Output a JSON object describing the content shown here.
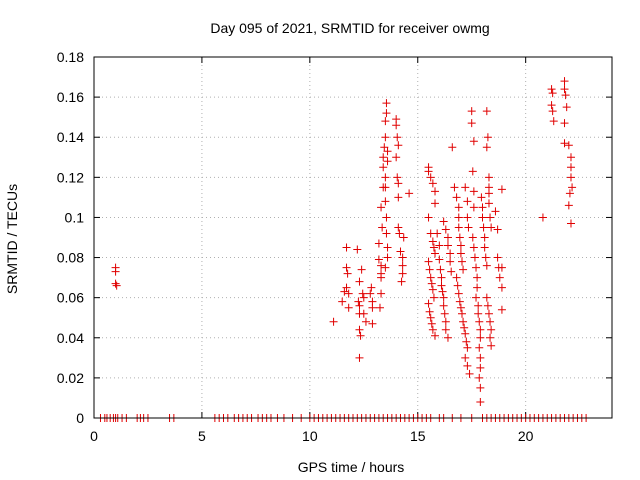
{
  "chart_data": {
    "type": "scatter",
    "title": "Day 095 of 2021, SRMTID for receiver owmg",
    "xlabel": "GPS time / hours",
    "ylabel": "SRMTID / TECUs",
    "xlim": [
      0,
      24
    ],
    "ylim": [
      0,
      0.18
    ],
    "xticks": [
      0,
      5,
      10,
      15,
      20
    ],
    "xtick_labels": [
      "0",
      "5",
      "10",
      "15",
      "20"
    ],
    "yticks": [
      0,
      0.02,
      0.04,
      0.06,
      0.08,
      0.1,
      0.12,
      0.14,
      0.16,
      0.18
    ],
    "ytick_labels": [
      "0",
      "0.02",
      "0.04",
      "0.06",
      "0.08",
      "0.1",
      "0.12",
      "0.14",
      "0.16",
      "0.18"
    ],
    "grid": true,
    "marker": "+",
    "color": "#e00000",
    "series": [
      {
        "name": "SRMTID",
        "points": [
          [
            1.0,
            0.075
          ],
          [
            1.0,
            0.073
          ],
          [
            1.0,
            0.067
          ],
          [
            1.05,
            0.066
          ],
          [
            11.1,
            0.048
          ],
          [
            11.5,
            0.058
          ],
          [
            11.6,
            0.063
          ],
          [
            11.7,
            0.085
          ],
          [
            11.7,
            0.075
          ],
          [
            11.75,
            0.072
          ],
          [
            11.7,
            0.065
          ],
          [
            11.8,
            0.062
          ],
          [
            11.8,
            0.055
          ],
          [
            12.2,
            0.084
          ],
          [
            12.3,
            0.068
          ],
          [
            12.25,
            0.058
          ],
          [
            12.3,
            0.056
          ],
          [
            12.3,
            0.052
          ],
          [
            12.3,
            0.044
          ],
          [
            12.35,
            0.041
          ],
          [
            12.3,
            0.03
          ],
          [
            12.4,
            0.074
          ],
          [
            12.45,
            0.062
          ],
          [
            12.5,
            0.06
          ],
          [
            12.5,
            0.052
          ],
          [
            12.6,
            0.048
          ],
          [
            12.8,
            0.062
          ],
          [
            12.9,
            0.058
          ],
          [
            12.9,
            0.055
          ],
          [
            12.9,
            0.047
          ],
          [
            12.85,
            0.065
          ],
          [
            13.2,
            0.087
          ],
          [
            13.2,
            0.079
          ],
          [
            13.3,
            0.076
          ],
          [
            13.3,
            0.072
          ],
          [
            13.3,
            0.07
          ],
          [
            13.3,
            0.062
          ],
          [
            13.25,
            0.055
          ],
          [
            13.35,
            0.095
          ],
          [
            13.3,
            0.105
          ],
          [
            13.4,
            0.115
          ],
          [
            13.4,
            0.125
          ],
          [
            13.4,
            0.13
          ],
          [
            13.45,
            0.135
          ],
          [
            13.5,
            0.14
          ],
          [
            13.5,
            0.148
          ],
          [
            13.55,
            0.152
          ],
          [
            13.55,
            0.157
          ],
          [
            13.6,
            0.133
          ],
          [
            13.6,
            0.128
          ],
          [
            13.5,
            0.12
          ],
          [
            13.5,
            0.115
          ],
          [
            13.5,
            0.108
          ],
          [
            13.55,
            0.1
          ],
          [
            13.55,
            0.092
          ],
          [
            13.6,
            0.085
          ],
          [
            13.6,
            0.08
          ],
          [
            13.5,
            0.075
          ],
          [
            14.0,
            0.149
          ],
          [
            14.0,
            0.146
          ],
          [
            14.05,
            0.14
          ],
          [
            14.1,
            0.136
          ],
          [
            14.0,
            0.13
          ],
          [
            14.05,
            0.12
          ],
          [
            14.1,
            0.117
          ],
          [
            14.1,
            0.11
          ],
          [
            14.1,
            0.095
          ],
          [
            14.15,
            0.092
          ],
          [
            14.2,
            0.083
          ],
          [
            14.3,
            0.08
          ],
          [
            14.3,
            0.076
          ],
          [
            14.3,
            0.072
          ],
          [
            14.25,
            0.068
          ],
          [
            14.35,
            0.09
          ],
          [
            14.6,
            0.112
          ],
          [
            15.5,
            0.125
          ],
          [
            15.5,
            0.123
          ],
          [
            15.6,
            0.12
          ],
          [
            15.7,
            0.117
          ],
          [
            15.8,
            0.113
          ],
          [
            15.8,
            0.107
          ],
          [
            15.5,
            0.1
          ],
          [
            15.6,
            0.092
          ],
          [
            15.7,
            0.088
          ],
          [
            15.75,
            0.085
          ],
          [
            15.8,
            0.082
          ],
          [
            15.5,
            0.078
          ],
          [
            15.55,
            0.074
          ],
          [
            15.6,
            0.07
          ],
          [
            15.65,
            0.067
          ],
          [
            15.7,
            0.064
          ],
          [
            15.75,
            0.06
          ],
          [
            15.5,
            0.057
          ],
          [
            15.55,
            0.053
          ],
          [
            15.6,
            0.05
          ],
          [
            15.65,
            0.047
          ],
          [
            15.7,
            0.044
          ],
          [
            15.8,
            0.041
          ],
          [
            15.9,
            0.092
          ],
          [
            16.0,
            0.086
          ],
          [
            16.0,
            0.079
          ],
          [
            16.05,
            0.074
          ],
          [
            16.1,
            0.07
          ],
          [
            16.1,
            0.066
          ],
          [
            16.15,
            0.063
          ],
          [
            16.2,
            0.06
          ],
          [
            16.2,
            0.056
          ],
          [
            16.25,
            0.052
          ],
          [
            16.3,
            0.048
          ],
          [
            16.3,
            0.044
          ],
          [
            16.4,
            0.04
          ],
          [
            16.2,
            0.098
          ],
          [
            16.3,
            0.094
          ],
          [
            16.4,
            0.09
          ],
          [
            16.4,
            0.086
          ],
          [
            16.5,
            0.082
          ],
          [
            16.5,
            0.078
          ],
          [
            16.55,
            0.073
          ],
          [
            16.6,
            0.135
          ],
          [
            16.7,
            0.115
          ],
          [
            16.8,
            0.11
          ],
          [
            16.9,
            0.105
          ],
          [
            16.9,
            0.1
          ],
          [
            16.9,
            0.095
          ],
          [
            16.95,
            0.09
          ],
          [
            17.0,
            0.086
          ],
          [
            17.0,
            0.082
          ],
          [
            17.05,
            0.078
          ],
          [
            17.1,
            0.074
          ],
          [
            16.8,
            0.07
          ],
          [
            16.85,
            0.066
          ],
          [
            16.9,
            0.062
          ],
          [
            16.95,
            0.058
          ],
          [
            17.0,
            0.055
          ],
          [
            17.05,
            0.052
          ],
          [
            17.1,
            0.048
          ],
          [
            17.15,
            0.045
          ],
          [
            17.2,
            0.042
          ],
          [
            17.25,
            0.038
          ],
          [
            17.3,
            0.035
          ],
          [
            17.2,
            0.03
          ],
          [
            17.3,
            0.026
          ],
          [
            17.4,
            0.022
          ],
          [
            17.2,
            0.115
          ],
          [
            17.3,
            0.108
          ],
          [
            17.3,
            0.1
          ],
          [
            17.35,
            0.095
          ],
          [
            17.5,
            0.153
          ],
          [
            17.5,
            0.147
          ],
          [
            17.6,
            0.138
          ],
          [
            17.55,
            0.123
          ],
          [
            17.6,
            0.113
          ],
          [
            17.6,
            0.105
          ],
          [
            17.55,
            0.09
          ],
          [
            17.6,
            0.085
          ],
          [
            17.65,
            0.08
          ],
          [
            17.7,
            0.075
          ],
          [
            17.75,
            0.07
          ],
          [
            17.75,
            0.065
          ],
          [
            17.7,
            0.06
          ],
          [
            17.8,
            0.056
          ],
          [
            17.8,
            0.052
          ],
          [
            17.85,
            0.048
          ],
          [
            17.9,
            0.044
          ],
          [
            17.9,
            0.04
          ],
          [
            17.85,
            0.035
          ],
          [
            17.9,
            0.03
          ],
          [
            17.9,
            0.025
          ],
          [
            17.85,
            0.02
          ],
          [
            17.9,
            0.015
          ],
          [
            17.9,
            0.008
          ],
          [
            17.95,
            0.11
          ],
          [
            18.0,
            0.105
          ],
          [
            18.0,
            0.1
          ],
          [
            18.05,
            0.095
          ],
          [
            18.1,
            0.09
          ],
          [
            18.1,
            0.085
          ],
          [
            18.15,
            0.08
          ],
          [
            18.2,
            0.076
          ],
          [
            18.2,
            0.153
          ],
          [
            18.25,
            0.14
          ],
          [
            18.2,
            0.135
          ],
          [
            18.3,
            0.12
          ],
          [
            18.3,
            0.115
          ],
          [
            18.3,
            0.112
          ],
          [
            18.3,
            0.107
          ],
          [
            18.35,
            0.1
          ],
          [
            18.4,
            0.095
          ],
          [
            18.2,
            0.06
          ],
          [
            18.25,
            0.056
          ],
          [
            18.3,
            0.052
          ],
          [
            18.35,
            0.048
          ],
          [
            18.4,
            0.044
          ],
          [
            18.35,
            0.04
          ],
          [
            18.4,
            0.036
          ],
          [
            18.6,
            0.103
          ],
          [
            18.7,
            0.094
          ],
          [
            18.7,
            0.08
          ],
          [
            18.75,
            0.075
          ],
          [
            18.8,
            0.07
          ],
          [
            18.9,
            0.114
          ],
          [
            18.9,
            0.075
          ],
          [
            18.9,
            0.065
          ],
          [
            18.9,
            0.054
          ],
          [
            20.8,
            0.1
          ],
          [
            21.2,
            0.164
          ],
          [
            21.25,
            0.162
          ],
          [
            21.2,
            0.156
          ],
          [
            21.25,
            0.153
          ],
          [
            21.3,
            0.148
          ],
          [
            21.8,
            0.168
          ],
          [
            21.8,
            0.164
          ],
          [
            21.85,
            0.161
          ],
          [
            21.9,
            0.155
          ],
          [
            21.8,
            0.147
          ],
          [
            21.8,
            0.137
          ],
          [
            22.0,
            0.136
          ],
          [
            22.1,
            0.13
          ],
          [
            22.1,
            0.125
          ],
          [
            22.1,
            0.12
          ],
          [
            22.15,
            0.115
          ],
          [
            22.05,
            0.112
          ],
          [
            22.0,
            0.106
          ],
          [
            22.1,
            0.097
          ],
          [
            0.3,
            0
          ],
          [
            0.5,
            0
          ],
          [
            0.6,
            0
          ],
          [
            0.75,
            0
          ],
          [
            0.9,
            0
          ],
          [
            1.0,
            0
          ],
          [
            1.1,
            0
          ],
          [
            1.3,
            0
          ],
          [
            1.5,
            0
          ],
          [
            2.0,
            0
          ],
          [
            2.15,
            0
          ],
          [
            2.3,
            0
          ],
          [
            2.5,
            0
          ],
          [
            3.5,
            0
          ],
          [
            3.7,
            0
          ],
          [
            5.6,
            0
          ],
          [
            5.8,
            0
          ],
          [
            6.0,
            0
          ],
          [
            6.2,
            0
          ],
          [
            6.5,
            0
          ],
          [
            6.7,
            0
          ],
          [
            6.9,
            0
          ],
          [
            7.1,
            0
          ],
          [
            7.3,
            0
          ],
          [
            7.6,
            0
          ],
          [
            7.8,
            0
          ],
          [
            8.0,
            0
          ],
          [
            8.2,
            0
          ],
          [
            8.5,
            0
          ],
          [
            8.8,
            0
          ],
          [
            9.2,
            0
          ],
          [
            9.6,
            0
          ],
          [
            10.0,
            0
          ],
          [
            10.2,
            0
          ],
          [
            10.4,
            0
          ],
          [
            10.6,
            0
          ],
          [
            10.8,
            0
          ],
          [
            11.0,
            0
          ],
          [
            11.2,
            0
          ],
          [
            11.4,
            0
          ],
          [
            11.6,
            0
          ],
          [
            11.8,
            0
          ],
          [
            12.0,
            0
          ],
          [
            12.2,
            0
          ],
          [
            12.4,
            0
          ],
          [
            12.6,
            0
          ],
          [
            12.8,
            0
          ],
          [
            13.0,
            0
          ],
          [
            13.2,
            0
          ],
          [
            13.4,
            0
          ],
          [
            13.6,
            0
          ],
          [
            13.8,
            0
          ],
          [
            14.0,
            0
          ],
          [
            14.2,
            0
          ],
          [
            14.4,
            0
          ],
          [
            14.6,
            0
          ],
          [
            14.8,
            0
          ],
          [
            15.0,
            0
          ],
          [
            15.2,
            0
          ],
          [
            15.4,
            0
          ],
          [
            15.6,
            0
          ],
          [
            16.0,
            0
          ],
          [
            16.2,
            0
          ],
          [
            16.6,
            0
          ],
          [
            17.0,
            0
          ],
          [
            17.5,
            0
          ],
          [
            18.0,
            0
          ],
          [
            18.2,
            0
          ],
          [
            18.4,
            0
          ],
          [
            18.6,
            0
          ],
          [
            18.8,
            0
          ],
          [
            19.0,
            0
          ],
          [
            19.2,
            0
          ],
          [
            19.4,
            0
          ],
          [
            19.6,
            0
          ],
          [
            19.8,
            0
          ],
          [
            20.0,
            0
          ],
          [
            20.2,
            0
          ],
          [
            20.4,
            0
          ],
          [
            20.6,
            0
          ],
          [
            20.8,
            0
          ],
          [
            21.0,
            0
          ],
          [
            21.2,
            0
          ],
          [
            21.4,
            0
          ],
          [
            21.6,
            0
          ],
          [
            21.8,
            0
          ],
          [
            22.0,
            0
          ],
          [
            22.2,
            0
          ],
          [
            22.4,
            0
          ],
          [
            22.6,
            0
          ],
          [
            22.8,
            0
          ]
        ]
      }
    ]
  }
}
